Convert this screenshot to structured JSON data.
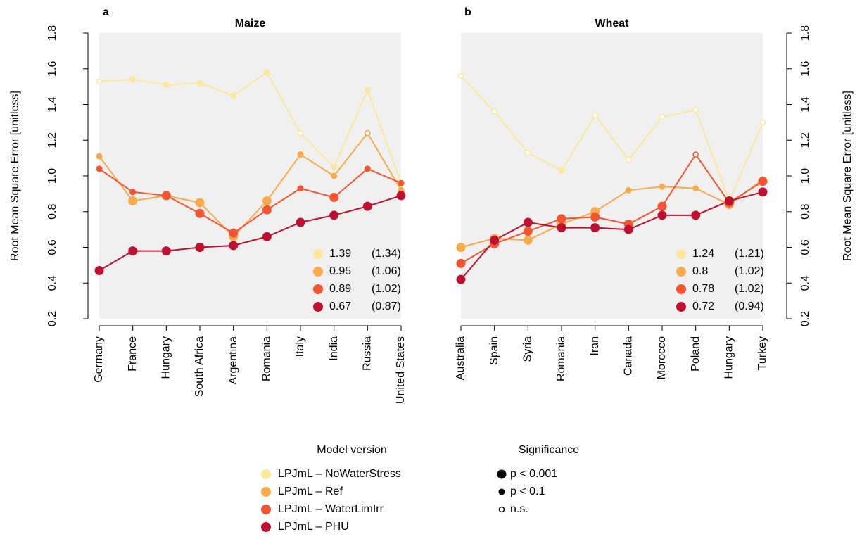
{
  "chart_data": [
    {
      "type": "line",
      "panel": "a",
      "title": "Maize",
      "ylabel": "Root Mean Square Error [unitless]",
      "yaxis_side": "left",
      "background": "#f0f0f0",
      "categories": [
        "Germany",
        "France",
        "Hungary",
        "South Africa",
        "Argentina",
        "Romania",
        "Italy",
        "India",
        "Russia",
        "United States"
      ],
      "ylim": [
        0.2,
        1.8
      ],
      "yticks": [
        0.2,
        0.4,
        0.6,
        0.8,
        {
          "value": 1,
          "label": "1.0"
        },
        1.2,
        1.4,
        1.6,
        1.8
      ],
      "series": [
        {
          "name": "LPJmL – NoWaterStress",
          "color": "#fde79a",
          "values": [
            1.53,
            1.54,
            1.51,
            1.52,
            1.45,
            1.58,
            1.24,
            1.05,
            1.48,
            0.96
          ],
          "markers": [
            "O",
            "S",
            "S",
            "S",
            "S",
            "S",
            "O",
            "S",
            "S",
            "S"
          ],
          "summary": "1.39",
          "summary_ref": "(1.34)"
        },
        {
          "name": "LPJmL – Ref",
          "color": "#f9ab4a",
          "values": [
            1.11,
            0.86,
            0.89,
            0.85,
            0.66,
            0.86,
            1.12,
            1.0,
            1.24,
            0.92
          ],
          "markers": [
            "S",
            "L",
            "S",
            "L",
            "L",
            "L",
            "S",
            "S",
            "O",
            "S"
          ],
          "summary": "0.95",
          "summary_ref": "(1.06)"
        },
        {
          "name": "LPJmL – WaterLimIrr",
          "color": "#f4542f",
          "values": [
            1.04,
            0.91,
            0.89,
            0.79,
            0.68,
            0.81,
            0.93,
            0.88,
            1.04,
            0.96
          ],
          "markers": [
            "S",
            "S",
            "L",
            "L",
            "L",
            "L",
            "S",
            "L",
            "S",
            "S"
          ],
          "summary": "0.89",
          "summary_ref": "(1.02)"
        },
        {
          "name": "LPJmL – PHU",
          "color": "#c0102f",
          "values": [
            0.47,
            0.58,
            0.58,
            0.6,
            0.61,
            0.66,
            0.74,
            0.78,
            0.83,
            0.89
          ],
          "markers": [
            "L",
            "L",
            "L",
            "L",
            "L",
            "L",
            "L",
            "L",
            "L",
            "L"
          ],
          "summary": "0.67",
          "summary_ref": "(0.87)"
        }
      ]
    },
    {
      "type": "line",
      "panel": "b",
      "title": "Wheat",
      "ylabel": "Root Mean Square Error [unitless]",
      "yaxis_side": "right",
      "background": "#f0f0f0",
      "categories": [
        "Australia",
        "Spain",
        "Syria",
        "Romania",
        "Iran",
        "Canada",
        "Morocco",
        "Poland",
        "Hungary",
        "Turkey"
      ],
      "ylim": [
        0.2,
        1.8
      ],
      "yticks": [
        0.2,
        0.4,
        0.6,
        0.8,
        {
          "value": 1,
          "label": "1.0"
        },
        1.2,
        1.4,
        1.6,
        1.8
      ],
      "series": [
        {
          "color": "#fde79a",
          "values": [
            1.56,
            1.36,
            1.13,
            1.03,
            1.34,
            1.09,
            1.33,
            1.37,
            0.86,
            1.3
          ],
          "markers": [
            "O",
            "O",
            "O",
            "S",
            "O",
            "O",
            "O",
            "O",
            "S",
            "O"
          ],
          "summary": "1.24",
          "summary_ref": "(1.21)"
        },
        {
          "color": "#f9ab4a",
          "values": [
            0.6,
            0.65,
            0.64,
            0.73,
            0.8,
            0.92,
            0.94,
            0.93,
            0.84,
            0.98
          ],
          "markers": [
            "L",
            "L",
            "L",
            "L",
            "L",
            "S",
            "S",
            "S",
            "L",
            "S"
          ],
          "summary": "0.8",
          "summary_ref": "(1.02)"
        },
        {
          "color": "#f4542f",
          "values": [
            0.51,
            0.62,
            0.69,
            0.76,
            0.77,
            0.73,
            0.83,
            1.12,
            0.85,
            0.97
          ],
          "markers": [
            "L",
            "L",
            "L",
            "L",
            "L",
            "L",
            "L",
            "O",
            "L",
            "L"
          ],
          "summary": "0.78",
          "summary_ref": "(1.02)"
        },
        {
          "color": "#c0102f",
          "values": [
            0.42,
            0.64,
            0.74,
            0.71,
            0.71,
            0.7,
            0.78,
            0.78,
            0.86,
            0.91
          ],
          "markers": [
            "L",
            "L",
            "L",
            "L",
            "L",
            "L",
            "L",
            "L",
            "L",
            "L"
          ],
          "summary": "0.72",
          "summary_ref": "(0.94)"
        }
      ]
    }
  ],
  "legend": {
    "title": "Model version"
  },
  "significance": {
    "title": "Significance",
    "entries": [
      {
        "marker": "L",
        "label": "p < 0.001"
      },
      {
        "marker": "S",
        "label": "p < 0.1"
      },
      {
        "marker": "O",
        "label": "n.s."
      }
    ]
  }
}
